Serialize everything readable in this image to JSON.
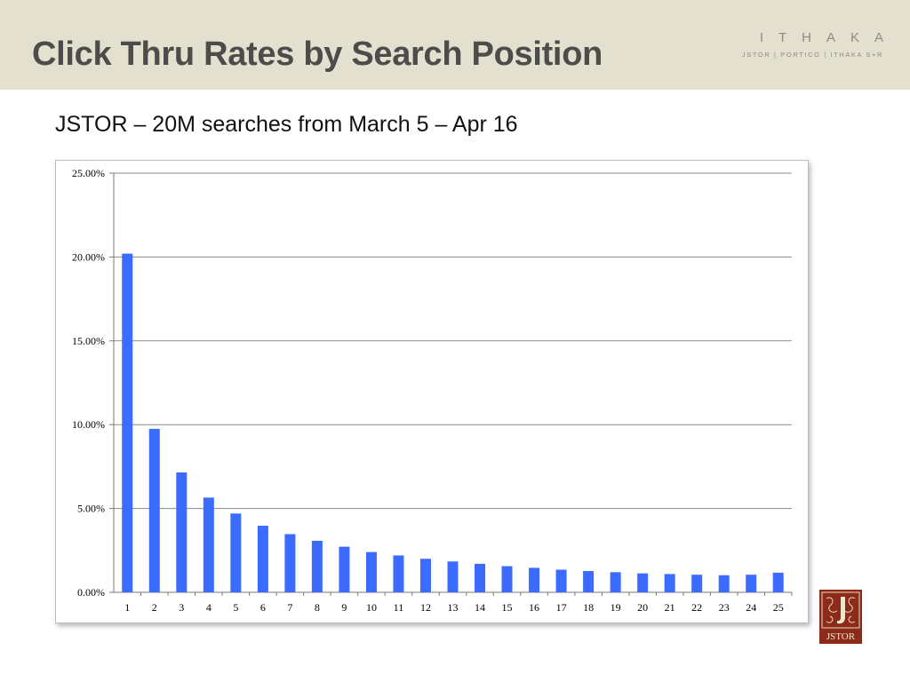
{
  "slide": {
    "title": "Click Thru Rates by Search Position",
    "subtitle": "JSTOR – 20M searches from March 5 – Apr 16"
  },
  "brand": {
    "name": "ITHAKA",
    "tagline": "JSTOR | PORTICO | ITHAKA S+R",
    "logo_text": "JSTOR"
  },
  "colors": {
    "header_bg": "#e3e0cf",
    "bar": "#3c6cff",
    "logo_red": "#8c2a1c"
  },
  "chart_data": {
    "type": "bar",
    "title": "",
    "xlabel": "",
    "ylabel": "",
    "categories": [
      "1",
      "2",
      "3",
      "4",
      "5",
      "6",
      "7",
      "8",
      "9",
      "10",
      "11",
      "12",
      "13",
      "14",
      "15",
      "16",
      "17",
      "18",
      "19",
      "20",
      "21",
      "22",
      "23",
      "24",
      "25"
    ],
    "values": [
      20.2,
      9.75,
      7.15,
      5.65,
      4.7,
      3.97,
      3.47,
      3.07,
      2.72,
      2.4,
      2.2,
      2.0,
      1.84,
      1.7,
      1.56,
      1.46,
      1.35,
      1.27,
      1.2,
      1.13,
      1.09,
      1.05,
      1.02,
      1.05,
      1.17
    ],
    "ylim": [
      0,
      25
    ],
    "yticks": [
      "0.00%",
      "5.00%",
      "10.00%",
      "15.00%",
      "20.00%",
      "25.00%"
    ],
    "grid": true,
    "legend": "none"
  }
}
